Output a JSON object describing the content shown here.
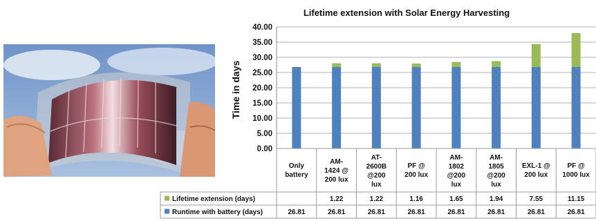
{
  "photo": {
    "icon": "flexible-solar-cell-photo"
  },
  "chart_data": {
    "type": "bar",
    "stacked": true,
    "title": "Lifetime extension with Solar Energy Harvesting",
    "xlabel": "",
    "ylabel": "Time in days",
    "ylim": [
      0,
      40
    ],
    "yticks": [
      "0.00",
      "5.00",
      "10.00",
      "15.00",
      "20.00",
      "25.00",
      "30.00",
      "35.00",
      "40.00"
    ],
    "grid": true,
    "categories": [
      [
        "Only",
        "battery"
      ],
      [
        "AM-",
        "1424 @",
        "200 lux"
      ],
      [
        "AT-",
        "2600B",
        "@200",
        "lux"
      ],
      [
        "PF @",
        "200 lux"
      ],
      [
        "AM-",
        "1802",
        "@200",
        "lux"
      ],
      [
        "AM-",
        "1805",
        "@200",
        "lux"
      ],
      [
        "EXL-1 @",
        "200 lux"
      ],
      [
        "PF @",
        "1000 lux"
      ]
    ],
    "series": [
      {
        "name": "Runtime with battery (days)",
        "color": "#4f81bd",
        "values": [
          26.81,
          26.81,
          26.81,
          26.81,
          26.81,
          26.81,
          26.81,
          26.81
        ],
        "labels": [
          "26.81",
          "26.81",
          "26.81",
          "26.81",
          "26.81",
          "26.81",
          "26.81",
          "26.81"
        ]
      },
      {
        "name": "Lifetime extension (days)",
        "color": "#9bbb59",
        "values": [
          0,
          1.22,
          1.22,
          1.16,
          1.65,
          1.94,
          7.55,
          11.15
        ],
        "labels": [
          "",
          "1.22",
          "1.22",
          "1.16",
          "1.65",
          "1.94",
          "7.55",
          "11.15"
        ]
      }
    ],
    "legend": "data-table-below"
  }
}
